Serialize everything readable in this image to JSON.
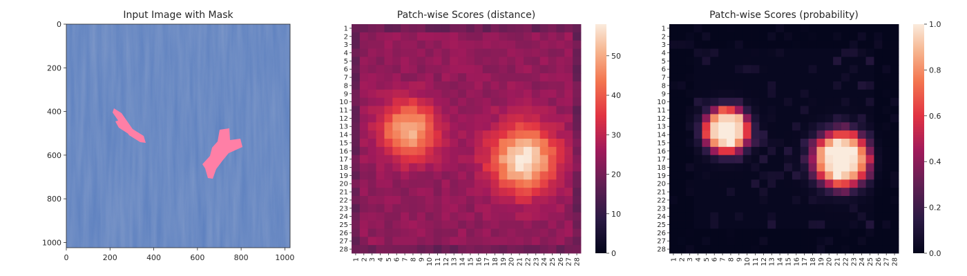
{
  "chart_data": [
    {
      "type": "image",
      "title": "Input Image with Mask",
      "xticks": [
        0,
        200,
        400,
        600,
        800,
        1000
      ],
      "yticks": [
        0,
        200,
        400,
        600,
        800,
        1000
      ],
      "xlim": [
        0,
        1024
      ],
      "ylim": [
        1024,
        0
      ],
      "colors": {
        "background": "#5b7fbf",
        "mask": "#ff7fa6"
      },
      "mask_regions": [
        {
          "cx": 283,
          "cy": 470,
          "note": "left defect"
        },
        {
          "cx": 700,
          "cy": 580,
          "note": "right defect"
        }
      ]
    },
    {
      "type": "heatmap",
      "title": "Patch-wise Scores (distance)",
      "rows": 28,
      "cols": 28,
      "tick_labels": [
        "1",
        "2",
        "3",
        "4",
        "5",
        "6",
        "7",
        "8",
        "9",
        "10",
        "11",
        "12",
        "13",
        "14",
        "15",
        "16",
        "17",
        "18",
        "19",
        "20",
        "21",
        "22",
        "23",
        "24",
        "25",
        "26",
        "27",
        "28"
      ],
      "colorbar": {
        "min": 0,
        "max": 58,
        "ticks": [
          0,
          10,
          20,
          30,
          40,
          50
        ]
      },
      "base_value": 24,
      "hotspots": [
        {
          "row": 13.5,
          "col": 7.5,
          "peak": 52,
          "radius": 3.2
        },
        {
          "row": 17,
          "col": 21.5,
          "peak": 58,
          "radius": 3.8
        }
      ]
    },
    {
      "type": "heatmap",
      "title": "Patch-wise Scores (probability)",
      "rows": 28,
      "cols": 28,
      "tick_labels": [
        "1",
        "2",
        "3",
        "4",
        "5",
        "6",
        "7",
        "8",
        "9",
        "10",
        "11",
        "12",
        "13",
        "14",
        "15",
        "16",
        "17",
        "18",
        "19",
        "20",
        "21",
        "22",
        "23",
        "24",
        "25",
        "26",
        "27",
        "28"
      ],
      "colorbar": {
        "min": 0,
        "max": 1,
        "ticks": [
          "0.0",
          "0.2",
          "0.4",
          "0.6",
          "0.8",
          "1.0"
        ]
      },
      "base_value": 0.02,
      "hotspots": [
        {
          "row": 13.5,
          "col": 7.5,
          "peak": 1.0,
          "radius": 2.7
        },
        {
          "row": 17,
          "col": 21.5,
          "peak": 1.0,
          "radius": 3.3
        }
      ]
    }
  ]
}
